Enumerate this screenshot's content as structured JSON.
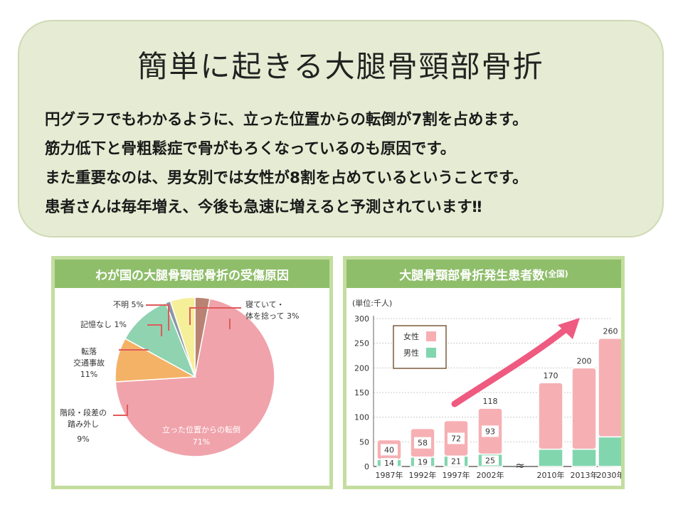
{
  "header": {
    "title": "簡単に起きる大腿骨頸部骨折",
    "lines": [
      "円グラフでもわかるように、立った位置からの転倒が7割を占めます。",
      "筋力低下と骨粗鬆症で骨がもろくなっているのも原因です。",
      "また重要なのは、男女別では女性が8割を占めているということです。",
      "患者さんは毎年増え、今後も急速に増えると予測されています‼"
    ]
  },
  "chart_data": [
    {
      "type": "pie",
      "title": "わが国の大腿骨頸部骨折の受傷原因",
      "slices": [
        {
          "label": "寝ていて・体を捻って",
          "percent": 3,
          "value_label": "3%",
          "color": "#b88373"
        },
        {
          "label": "立った位置からの転倒",
          "percent": 71,
          "value_label": "71%",
          "color": "#f0a3ab"
        },
        {
          "label": "階段・段差の踏み外し",
          "percent": 9,
          "value_label": "9%",
          "color": "#f4b266"
        },
        {
          "label": "転落交通事故",
          "percent": 11,
          "value_label": "11%",
          "color": "#8fd3b1"
        },
        {
          "label": "記憶なし",
          "percent": 1,
          "value_label": "1%",
          "color": "#8a96a4"
        },
        {
          "label": "不明",
          "percent": 5,
          "value_label": "5%",
          "color": "#f6ef9a"
        }
      ],
      "label_text": {
        "sleeping_line1": "寝ていて・",
        "sleeping_line2": "体を捻って 3%",
        "unknown": "不明 5%",
        "nomemory": "記憶なし 1%",
        "fall_line1": "転落",
        "fall_line2": "交通事故",
        "fall_line3": "11%",
        "steps_line1": "階段・段差の",
        "steps_line2": "踏み外し",
        "steps_line3": "9%",
        "standing_line1": "立った位置からの転倒",
        "standing_line2": "71%"
      },
      "colors": {
        "leader_line": "#e05a5a",
        "slice_border": "#ffffff"
      }
    },
    {
      "type": "bar",
      "stacked": true,
      "title": "大腿骨頸部骨折発生患者数",
      "title_suffix": "(全国)",
      "unit_label": "(単位:千人)",
      "categories": [
        "1987年",
        "1992年",
        "1997年",
        "2002年",
        "2010年",
        "2013年",
        "2030年"
      ],
      "series": [
        {
          "name": "男性",
          "values": [
            14,
            19,
            21,
            25,
            35,
            35,
            60
          ],
          "color": "#82d6ae"
        },
        {
          "name": "女性",
          "values": [
            40,
            58,
            72,
            93,
            135,
            165,
            200
          ],
          "color": "#f6b0b4"
        }
      ],
      "totals": [
        54,
        77,
        93,
        118,
        170,
        200,
        260
      ],
      "shown_labels": {
        "male": [
          "14",
          "19",
          "21",
          "25",
          "",
          "",
          ""
        ],
        "female": [
          "40",
          "58",
          "72",
          "93",
          "",
          "",
          ""
        ],
        "total": [
          "",
          "",
          "",
          "118",
          "170",
          "200",
          "260"
        ]
      },
      "y_ticks": [
        0,
        50,
        100,
        150,
        200,
        250,
        300
      ],
      "ylim": [
        0,
        300
      ],
      "axis_break_symbol": "≈",
      "legend": {
        "position": "top-left",
        "items": [
          "女性",
          "男性"
        ]
      },
      "grid": true,
      "trend_arrow": true,
      "colors": {
        "arrow": "#ef5a80",
        "bar_outline": "#ffffff",
        "axis": "#666666",
        "grid": "#cccccc",
        "legend_border": "#7a5a3a"
      }
    }
  ]
}
